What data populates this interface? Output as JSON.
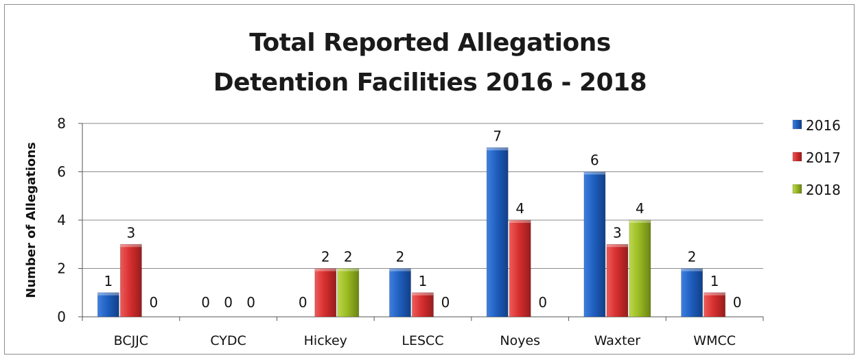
{
  "chart_data": {
    "type": "bar",
    "title_line1": "Total Reported Allegations",
    "title_line2": "Detention Facilities 2016 - 2018",
    "xlabel": "",
    "ylabel": "Number of Allegations",
    "ylim": [
      0,
      8
    ],
    "yticks": [
      "0",
      "2",
      "4",
      "6",
      "8"
    ],
    "grid": true,
    "legend_position": "right",
    "categories": [
      "BCJJC",
      "CYDC",
      "Hickey",
      "LESCC",
      "Noyes",
      "Waxter",
      "WMCC"
    ],
    "series": [
      {
        "name": "2016",
        "color": "#1f5fbf",
        "values": [
          1,
          0,
          0,
          2,
          7,
          6,
          2
        ]
      },
      {
        "name": "2017",
        "color": "#d62f2f",
        "values": [
          3,
          0,
          2,
          1,
          4,
          3,
          1
        ]
      },
      {
        "name": "2018",
        "color": "#9bbb24",
        "values": [
          0,
          0,
          2,
          0,
          0,
          4,
          0
        ]
      }
    ]
  }
}
